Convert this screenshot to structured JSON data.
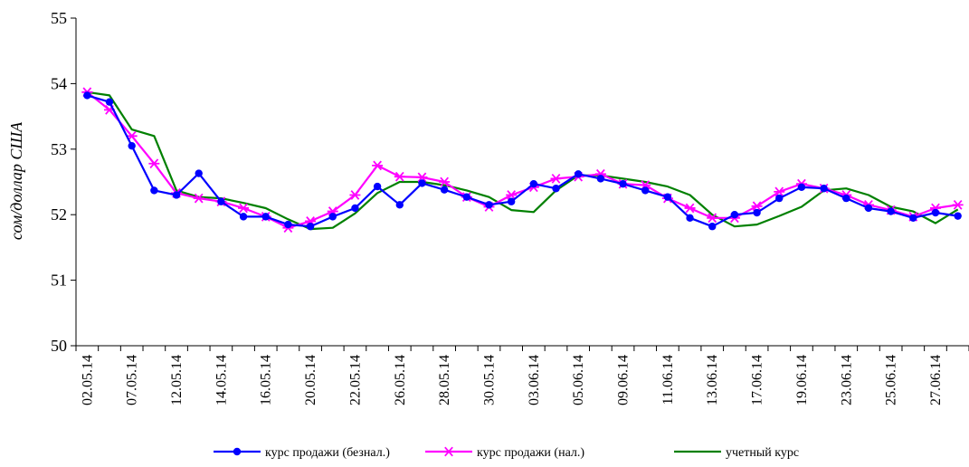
{
  "chart_data": {
    "type": "line",
    "ylabel": "сом/доллар США",
    "xlabel": "",
    "ylim": [
      50,
      55
    ],
    "yticks": [
      50,
      51,
      52,
      53,
      54,
      55
    ],
    "grid": false,
    "legend_position": "bottom",
    "x": [
      "02.05.14",
      "05.05.14",
      "07.05.14",
      "08.05.14",
      "12.05.14",
      "13.05.14",
      "14.05.14",
      "15.05.14",
      "16.05.14",
      "19.05.14",
      "20.05.14",
      "21.05.14",
      "22.05.14",
      "23.05.14",
      "26.05.14",
      "27.05.14",
      "28.05.14",
      "29.05.14",
      "30.05.14",
      "02.06.14",
      "03.06.14",
      "04.06.14",
      "05.06.14",
      "06.06.14",
      "09.06.14",
      "10.06.14",
      "11.06.14",
      "12.06.14",
      "13.06.14",
      "16.06.14",
      "17.06.14",
      "18.06.14",
      "19.06.14",
      "20.06.14",
      "23.06.14",
      "24.06.14",
      "25.06.14",
      "26.06.14",
      "27.06.14",
      "30.06.14"
    ],
    "x_tick_labels": [
      "02.05.14",
      "07.05.14",
      "12.05.14",
      "14.05.14",
      "16.05.14",
      "20.05.14",
      "22.05.14",
      "26.05.14",
      "28.05.14",
      "30.05.14",
      "03.06.14",
      "05.06.14",
      "09.06.14",
      "11.06.14",
      "13.06.14",
      "17.06.14",
      "19.06.14",
      "23.06.14",
      "25.06.14",
      "27.06.14"
    ],
    "series": [
      {
        "name": "курс продажи (безнал.)",
        "color": "#0000ff",
        "marker": "circle",
        "values": [
          53.82,
          53.72,
          53.05,
          52.37,
          52.3,
          52.63,
          52.2,
          51.97,
          51.97,
          51.85,
          51.82,
          51.97,
          52.1,
          52.43,
          52.15,
          52.48,
          52.38,
          52.27,
          52.15,
          52.2,
          52.47,
          52.4,
          52.62,
          52.55,
          52.47,
          52.37,
          52.27,
          51.95,
          51.82,
          52.0,
          52.03,
          52.25,
          52.42,
          52.4,
          52.25,
          52.1,
          52.05,
          51.95,
          52.03,
          51.98
        ]
      },
      {
        "name": "курс продажи (нал.)",
        "color": "#ff00ff",
        "marker": "star",
        "values": [
          53.87,
          53.6,
          53.2,
          52.78,
          52.33,
          52.25,
          52.2,
          52.1,
          51.97,
          51.8,
          51.9,
          52.05,
          52.3,
          52.75,
          52.58,
          52.57,
          52.5,
          52.27,
          52.12,
          52.3,
          52.42,
          52.55,
          52.58,
          52.62,
          52.47,
          52.45,
          52.25,
          52.1,
          51.95,
          51.95,
          52.13,
          52.35,
          52.47,
          52.4,
          52.3,
          52.15,
          52.07,
          51.97,
          52.1,
          52.15
        ]
      },
      {
        "name": "учетный курс",
        "color": "#008000",
        "marker": "none",
        "values": [
          53.87,
          53.82,
          53.3,
          53.2,
          52.37,
          52.27,
          52.25,
          52.18,
          52.1,
          51.93,
          51.78,
          51.8,
          52.02,
          52.33,
          52.5,
          52.5,
          52.45,
          52.37,
          52.27,
          52.07,
          52.04,
          52.37,
          52.6,
          52.6,
          52.55,
          52.5,
          52.43,
          52.3,
          52.0,
          51.82,
          51.85,
          51.98,
          52.12,
          52.37,
          52.4,
          52.3,
          52.12,
          52.05,
          51.87,
          52.08
        ]
      }
    ]
  }
}
